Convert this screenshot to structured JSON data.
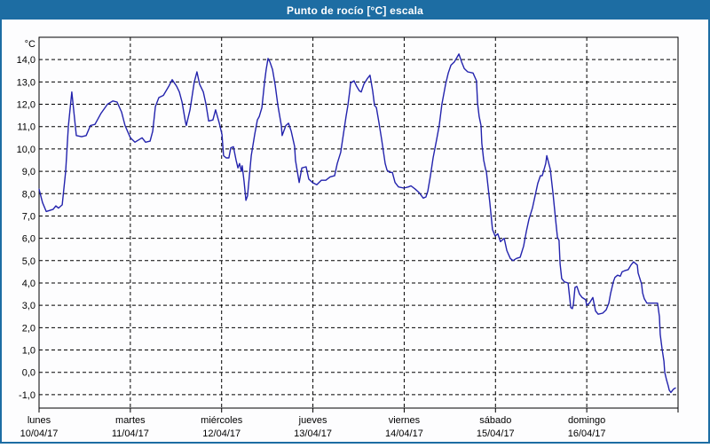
{
  "window": {
    "title": "Punto de rocío [°C] escala"
  },
  "colors": {
    "header_bg": "#1d6da3",
    "frame": "#1d6da3",
    "plot_bg": "#fdfdfe",
    "grid": "#000000",
    "axis": "#000000",
    "line": "#2323ad",
    "title_text": "#ffffff"
  },
  "chart_data": {
    "type": "line",
    "title": "Punto de rocío [°C] escala",
    "ylabel": "°C",
    "xlabel": "",
    "grid": "dashed",
    "legend_position": "none",
    "ylim": [
      -1.6,
      15.0
    ],
    "x_hours_range": [
      0,
      168
    ],
    "y_ticks": [
      {
        "v": 14,
        "label": "14,0"
      },
      {
        "v": 13,
        "label": "13,0"
      },
      {
        "v": 12,
        "label": "12,0"
      },
      {
        "v": 11,
        "label": "11,0"
      },
      {
        "v": 10,
        "label": "10,0"
      },
      {
        "v": 9,
        "label": "9,0"
      },
      {
        "v": 8,
        "label": "8,0"
      },
      {
        "v": 7,
        "label": "7,0"
      },
      {
        "v": 6,
        "label": "6,0"
      },
      {
        "v": 5,
        "label": "5,0"
      },
      {
        "v": 4,
        "label": "4,0"
      },
      {
        "v": 3,
        "label": "3,0"
      },
      {
        "v": 2,
        "label": "2,0"
      },
      {
        "v": 1,
        "label": "1,0"
      },
      {
        "v": 0,
        "label": "0,0"
      },
      {
        "v": -1,
        "label": "-1,0"
      }
    ],
    "days": [
      {
        "name": "lunes",
        "date": "10/04/17"
      },
      {
        "name": "martes",
        "date": "11/04/17"
      },
      {
        "name": "miércoles",
        "date": "12/04/17"
      },
      {
        "name": "jueves",
        "date": "13/04/17"
      },
      {
        "name": "viernes",
        "date": "14/04/17"
      },
      {
        "name": "sábado",
        "date": "15/04/17"
      },
      {
        "name": "domingo",
        "date": "16/04/17"
      }
    ],
    "series": [
      {
        "name": "Punto de rocío [°C]",
        "color": "#2323ad",
        "points": [
          [
            0,
            8.2
          ],
          [
            0.9,
            7.6
          ],
          [
            1.9,
            7.2
          ],
          [
            2.8,
            7.25
          ],
          [
            3.7,
            7.3
          ],
          [
            4.4,
            7.45
          ],
          [
            5.1,
            7.35
          ],
          [
            6.1,
            7.5
          ],
          [
            7,
            9
          ],
          [
            7.7,
            11
          ],
          [
            8.6,
            12.55
          ],
          [
            9.8,
            10.6
          ],
          [
            11.2,
            10.55
          ],
          [
            12.4,
            10.6
          ],
          [
            13.5,
            11.05
          ],
          [
            14.7,
            11.1
          ],
          [
            16.3,
            11.6
          ],
          [
            18,
            12
          ],
          [
            19.4,
            12.15
          ],
          [
            20.5,
            12.1
          ],
          [
            21.7,
            11.65
          ],
          [
            22.6,
            11.05
          ],
          [
            24,
            10.5
          ],
          [
            25.2,
            10.3
          ],
          [
            27.1,
            10.5
          ],
          [
            28,
            10.3
          ],
          [
            29.2,
            10.35
          ],
          [
            29.9,
            10.8
          ],
          [
            30.6,
            11.9
          ],
          [
            31.5,
            12.3
          ],
          [
            32.7,
            12.4
          ],
          [
            34.1,
            12.8
          ],
          [
            35,
            13.1
          ],
          [
            36.2,
            12.8
          ],
          [
            36.9,
            12.55
          ],
          [
            37.6,
            12.1
          ],
          [
            38.5,
            11.2
          ],
          [
            38.7,
            11.05
          ],
          [
            39.7,
            11.75
          ],
          [
            40.8,
            13
          ],
          [
            41.5,
            13.45
          ],
          [
            42.2,
            12.9
          ],
          [
            43.2,
            12.55
          ],
          [
            43.9,
            12
          ],
          [
            44.6,
            11.25
          ],
          [
            45.7,
            11.3
          ],
          [
            46.4,
            11.75
          ],
          [
            47.4,
            11.15
          ],
          [
            48.1,
            10.65
          ],
          [
            48.5,
            9.7
          ],
          [
            49.2,
            9.6
          ],
          [
            49.9,
            9.6
          ],
          [
            50.4,
            10.05
          ],
          [
            51.1,
            10.1
          ],
          [
            51.8,
            9.5
          ],
          [
            52.3,
            9.15
          ],
          [
            52.7,
            9.35
          ],
          [
            53.2,
            9
          ],
          [
            53.4,
            9.25
          ],
          [
            53.9,
            8.55
          ],
          [
            54.4,
            7.7
          ],
          [
            54.8,
            7.9
          ],
          [
            55.8,
            9.7
          ],
          [
            56.7,
            10.65
          ],
          [
            57.4,
            11.3
          ],
          [
            57.9,
            11.45
          ],
          [
            58.6,
            11.85
          ],
          [
            59.3,
            13
          ],
          [
            59.7,
            13.55
          ],
          [
            60.2,
            14.05
          ],
          [
            60.7,
            13.9
          ],
          [
            61.4,
            13.55
          ],
          [
            62.1,
            12.85
          ],
          [
            62.8,
            11.95
          ],
          [
            63.7,
            11.05
          ],
          [
            63.9,
            10.6
          ],
          [
            64.9,
            11.05
          ],
          [
            65.6,
            11.15
          ],
          [
            66.3,
            10.8
          ],
          [
            67.2,
            10.1
          ],
          [
            67.4,
            9.5
          ],
          [
            68.4,
            8.5
          ],
          [
            69.1,
            9.15
          ],
          [
            70.2,
            9.2
          ],
          [
            70.9,
            8.65
          ],
          [
            71.9,
            8.5
          ],
          [
            73,
            8.4
          ],
          [
            74.2,
            8.6
          ],
          [
            75.4,
            8.6
          ],
          [
            76.5,
            8.75
          ],
          [
            77.7,
            8.8
          ],
          [
            78.4,
            9.35
          ],
          [
            79.3,
            9.85
          ],
          [
            80,
            10.65
          ],
          [
            80.7,
            11.45
          ],
          [
            81.2,
            11.95
          ],
          [
            81.7,
            12.6
          ],
          [
            81.9,
            12.95
          ],
          [
            82.8,
            13.05
          ],
          [
            83.5,
            12.8
          ],
          [
            84.2,
            12.6
          ],
          [
            84.7,
            12.55
          ],
          [
            85.4,
            12.9
          ],
          [
            86.3,
            13.15
          ],
          [
            87,
            13.3
          ],
          [
            87.7,
            12.6
          ],
          [
            88.2,
            11.95
          ],
          [
            88.7,
            11.85
          ],
          [
            89.4,
            11.15
          ],
          [
            90.1,
            10.4
          ],
          [
            91,
            9.35
          ],
          [
            91.5,
            9.05
          ],
          [
            92.2,
            8.95
          ],
          [
            92.9,
            8.95
          ],
          [
            93.6,
            8.5
          ],
          [
            94.5,
            8.3
          ],
          [
            95.9,
            8.25
          ],
          [
            97.1,
            8.3
          ],
          [
            97.8,
            8.35
          ],
          [
            98.9,
            8.2
          ],
          [
            99.9,
            8.05
          ],
          [
            101,
            7.8
          ],
          [
            101.7,
            7.85
          ],
          [
            102.2,
            8.1
          ],
          [
            102.9,
            8.8
          ],
          [
            103.6,
            9.6
          ],
          [
            104.5,
            10.4
          ],
          [
            105.2,
            11.05
          ],
          [
            105.9,
            12
          ],
          [
            106.9,
            12.9
          ],
          [
            107.6,
            13.4
          ],
          [
            108.3,
            13.75
          ],
          [
            109.2,
            13.9
          ],
          [
            110.4,
            14.25
          ],
          [
            111.1,
            13.9
          ],
          [
            111.8,
            13.6
          ],
          [
            112.7,
            13.45
          ],
          [
            114.1,
            13.4
          ],
          [
            115,
            13.05
          ],
          [
            115.3,
            12.05
          ],
          [
            115.7,
            11.45
          ],
          [
            116.2,
            11.05
          ],
          [
            116.4,
            10.25
          ],
          [
            116.9,
            9.5
          ],
          [
            117.4,
            9.1
          ],
          [
            117.6,
            9
          ],
          [
            118.5,
            7.6
          ],
          [
            119.2,
            6.4
          ],
          [
            119.9,
            6.1
          ],
          [
            120.6,
            6.2
          ],
          [
            121.3,
            5.85
          ],
          [
            122.3,
            6
          ],
          [
            123,
            5.45
          ],
          [
            123.9,
            5.1
          ],
          [
            124.6,
            5
          ],
          [
            125.5,
            5.1
          ],
          [
            126.5,
            5.15
          ],
          [
            127.4,
            5.65
          ],
          [
            128.1,
            6.3
          ],
          [
            128.8,
            6.85
          ],
          [
            129.7,
            7.35
          ],
          [
            130.4,
            7.9
          ],
          [
            131.1,
            8.45
          ],
          [
            131.8,
            8.8
          ],
          [
            132.3,
            8.8
          ],
          [
            133.2,
            9.35
          ],
          [
            133.5,
            9.7
          ],
          [
            134.4,
            9.1
          ],
          [
            135.1,
            8.05
          ],
          [
            135.8,
            6.85
          ],
          [
            136.3,
            6.05
          ],
          [
            136.7,
            5.9
          ],
          [
            137,
            4.85
          ],
          [
            137.4,
            4.2
          ],
          [
            138.1,
            4.05
          ],
          [
            139.1,
            4
          ],
          [
            139.8,
            2.9
          ],
          [
            140.2,
            2.85
          ],
          [
            140.5,
            3.05
          ],
          [
            140.9,
            3.8
          ],
          [
            141.4,
            3.85
          ],
          [
            142.1,
            3.5
          ],
          [
            142.8,
            3.35
          ],
          [
            143.7,
            3.25
          ],
          [
            144,
            3
          ],
          [
            144.7,
            3.1
          ],
          [
            145.6,
            3.35
          ],
          [
            146.3,
            2.75
          ],
          [
            147,
            2.6
          ],
          [
            148.2,
            2.65
          ],
          [
            149.1,
            2.8
          ],
          [
            149.8,
            3.1
          ],
          [
            150.3,
            3.55
          ],
          [
            151,
            4.05
          ],
          [
            151.4,
            4.25
          ],
          [
            152.1,
            4.35
          ],
          [
            152.8,
            4.3
          ],
          [
            153.3,
            4.5
          ],
          [
            154,
            4.55
          ],
          [
            154.9,
            4.6
          ],
          [
            155.6,
            4.8
          ],
          [
            156.3,
            4.95
          ],
          [
            157.3,
            4.8
          ],
          [
            157.5,
            4.45
          ],
          [
            158.4,
            3.95
          ],
          [
            158.7,
            3.55
          ],
          [
            159.1,
            3.3
          ],
          [
            159.8,
            3.1
          ],
          [
            161,
            3.1
          ],
          [
            162.6,
            3.1
          ],
          [
            163.1,
            2.5
          ],
          [
            163.3,
            1.7
          ],
          [
            163.8,
            1.05
          ],
          [
            164.3,
            0.5
          ],
          [
            164.5,
            0
          ],
          [
            165,
            -0.35
          ],
          [
            165.4,
            -0.6
          ],
          [
            165.7,
            -0.8
          ],
          [
            166.1,
            -0.9
          ],
          [
            166.8,
            -0.75
          ],
          [
            167.3,
            -0.7
          ]
        ]
      }
    ]
  }
}
